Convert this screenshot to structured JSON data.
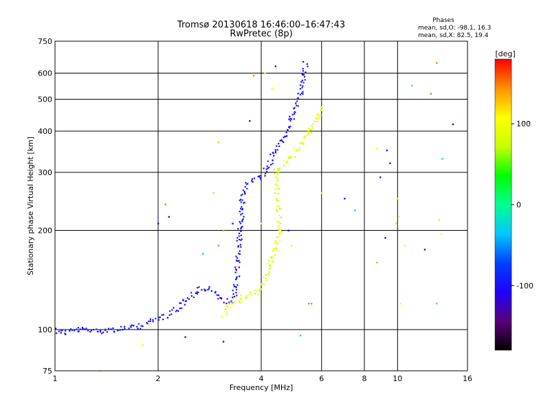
{
  "chart_data": {
    "type": "scatter",
    "title": "Tromsø 20130618 16:46:00–16:47:43",
    "subtitle": "RwPretec (8p)",
    "xlabel": "Frequency [MHz]",
    "ylabel": "Stationary phase Virtual Height [km]",
    "x_scale": "log",
    "y_scale": "log",
    "xlim": [
      1,
      16
    ],
    "ylim": [
      75,
      750
    ],
    "x_ticks": [
      1,
      2,
      4,
      6,
      8,
      10,
      16
    ],
    "y_ticks": [
      75,
      100,
      200,
      300,
      400,
      500,
      600,
      750
    ],
    "grid": true,
    "legend": {
      "title": "Phases",
      "lines": [
        "mean, sd,O: -98.1, 16.3",
        "mean, sd,X: 82.5, 19.4"
      ],
      "placement": "top-right"
    },
    "colorbar": {
      "label": "[deg]",
      "ticks": [
        100,
        0,
        -100
      ],
      "range": [
        -180,
        180
      ],
      "colors": [
        "#000000",
        "#5a0078",
        "#2000ff",
        "#0040ff",
        "#00c8ff",
        "#00ff90",
        "#00ff00",
        "#c8ff00",
        "#ffff00",
        "#ff9000",
        "#ff0000"
      ]
    },
    "traces": [
      {
        "name": "O",
        "phase": -100,
        "points": [
          [
            1.0,
            100
          ],
          [
            1.05,
            98
          ],
          [
            1.1,
            99
          ],
          [
            1.2,
            100
          ],
          [
            1.3,
            99
          ],
          [
            1.4,
            100
          ],
          [
            1.5,
            100
          ],
          [
            1.6,
            101
          ],
          [
            1.7,
            101
          ],
          [
            1.8,
            103
          ],
          [
            1.9,
            106
          ],
          [
            2.0,
            108
          ],
          [
            2.1,
            110
          ],
          [
            2.2,
            113
          ],
          [
            2.3,
            117
          ],
          [
            2.4,
            122
          ],
          [
            2.5,
            127
          ],
          [
            2.6,
            131
          ],
          [
            2.7,
            133
          ],
          [
            2.8,
            133
          ],
          [
            2.9,
            130
          ],
          [
            3.0,
            126
          ],
          [
            3.1,
            123
          ],
          [
            3.2,
            122
          ],
          [
            3.3,
            122
          ],
          [
            3.35,
            130
          ],
          [
            3.4,
            145
          ],
          [
            3.42,
            165
          ],
          [
            3.45,
            185
          ],
          [
            3.48,
            205
          ],
          [
            3.5,
            225
          ],
          [
            3.52,
            250
          ],
          [
            3.55,
            265
          ],
          [
            3.6,
            275
          ],
          [
            3.7,
            280
          ],
          [
            3.8,
            283
          ],
          [
            3.9,
            287
          ],
          [
            4.0,
            292
          ],
          [
            4.1,
            300
          ],
          [
            4.2,
            315
          ],
          [
            4.3,
            330
          ],
          [
            4.4,
            345
          ],
          [
            4.5,
            360
          ],
          [
            4.6,
            375
          ],
          [
            4.7,
            390
          ],
          [
            4.8,
            410
          ],
          [
            4.9,
            430
          ],
          [
            5.0,
            455
          ],
          [
            5.1,
            485
          ],
          [
            5.2,
            520
          ],
          [
            5.3,
            560
          ],
          [
            5.35,
            600
          ],
          [
            5.4,
            640
          ]
        ]
      },
      {
        "name": "X",
        "phase": 90,
        "points": [
          [
            3.1,
            112
          ],
          [
            3.2,
            118
          ],
          [
            3.3,
            121
          ],
          [
            3.5,
            124
          ],
          [
            3.7,
            127
          ],
          [
            3.9,
            130
          ],
          [
            4.0,
            134
          ],
          [
            4.1,
            142
          ],
          [
            4.2,
            152
          ],
          [
            4.3,
            165
          ],
          [
            4.4,
            178
          ],
          [
            4.5,
            190
          ],
          [
            4.55,
            200
          ],
          [
            4.4,
            300
          ],
          [
            4.5,
            305
          ],
          [
            4.6,
            310
          ],
          [
            4.7,
            318
          ],
          [
            4.8,
            326
          ],
          [
            4.9,
            335
          ],
          [
            5.0,
            345
          ],
          [
            5.1,
            355
          ],
          [
            5.2,
            365
          ],
          [
            5.3,
            375
          ],
          [
            5.4,
            385
          ],
          [
            5.5,
            395
          ],
          [
            5.6,
            405
          ],
          [
            5.7,
            420
          ],
          [
            5.8,
            435
          ],
          [
            5.9,
            455
          ],
          [
            6.0,
            480
          ]
        ]
      }
    ],
    "stray_points": [
      [
        5.3,
        650,
        -100
      ],
      [
        4.4,
        630,
        -100
      ],
      [
        4.3,
        540,
        110
      ],
      [
        4.1,
        600,
        110
      ],
      [
        3.8,
        590,
        150
      ],
      [
        13.0,
        645,
        150
      ],
      [
        12.5,
        520,
        150
      ],
      [
        11.0,
        550,
        -20
      ],
      [
        14.5,
        420,
        -100
      ],
      [
        13.5,
        330,
        -30
      ],
      [
        3.0,
        370,
        130
      ],
      [
        2.9,
        260,
        120
      ],
      [
        2.1,
        240,
        150
      ],
      [
        2.15,
        220,
        -100
      ],
      [
        2.0,
        210,
        -100
      ],
      [
        3.3,
        210,
        -100
      ],
      [
        3.7,
        430,
        -100
      ],
      [
        6.0,
        260,
        100
      ],
      [
        7.0,
        250,
        -100
      ],
      [
        7.5,
        230,
        -30
      ],
      [
        8.7,
        355,
        100
      ],
      [
        9.3,
        350,
        -100
      ],
      [
        9.5,
        320,
        -100
      ],
      [
        8.9,
        290,
        -100
      ],
      [
        10.0,
        250,
        100
      ],
      [
        10.1,
        220,
        110
      ],
      [
        9.9,
        210,
        120
      ],
      [
        9.2,
        190,
        -100
      ],
      [
        8.7,
        160,
        50
      ],
      [
        10.5,
        180,
        100
      ],
      [
        12.0,
        175,
        -100
      ],
      [
        13.0,
        120,
        20
      ],
      [
        10.2,
        120,
        110
      ],
      [
        5.5,
        120,
        150
      ],
      [
        5.2,
        96,
        -30
      ],
      [
        3.1,
        92,
        -100
      ],
      [
        2.4,
        95,
        -100
      ],
      [
        1.8,
        90,
        100
      ],
      [
        1.35,
        75,
        90
      ],
      [
        2.7,
        170,
        -30
      ],
      [
        3.0,
        180,
        150
      ],
      [
        3.1,
        200,
        140
      ],
      [
        4.0,
        210,
        110
      ],
      [
        13.2,
        215,
        120
      ],
      [
        13.4,
        195,
        100
      ],
      [
        4.9,
        180,
        90
      ],
      [
        5.6,
        120,
        150
      ],
      [
        4.8,
        200,
        -100
      ]
    ]
  }
}
